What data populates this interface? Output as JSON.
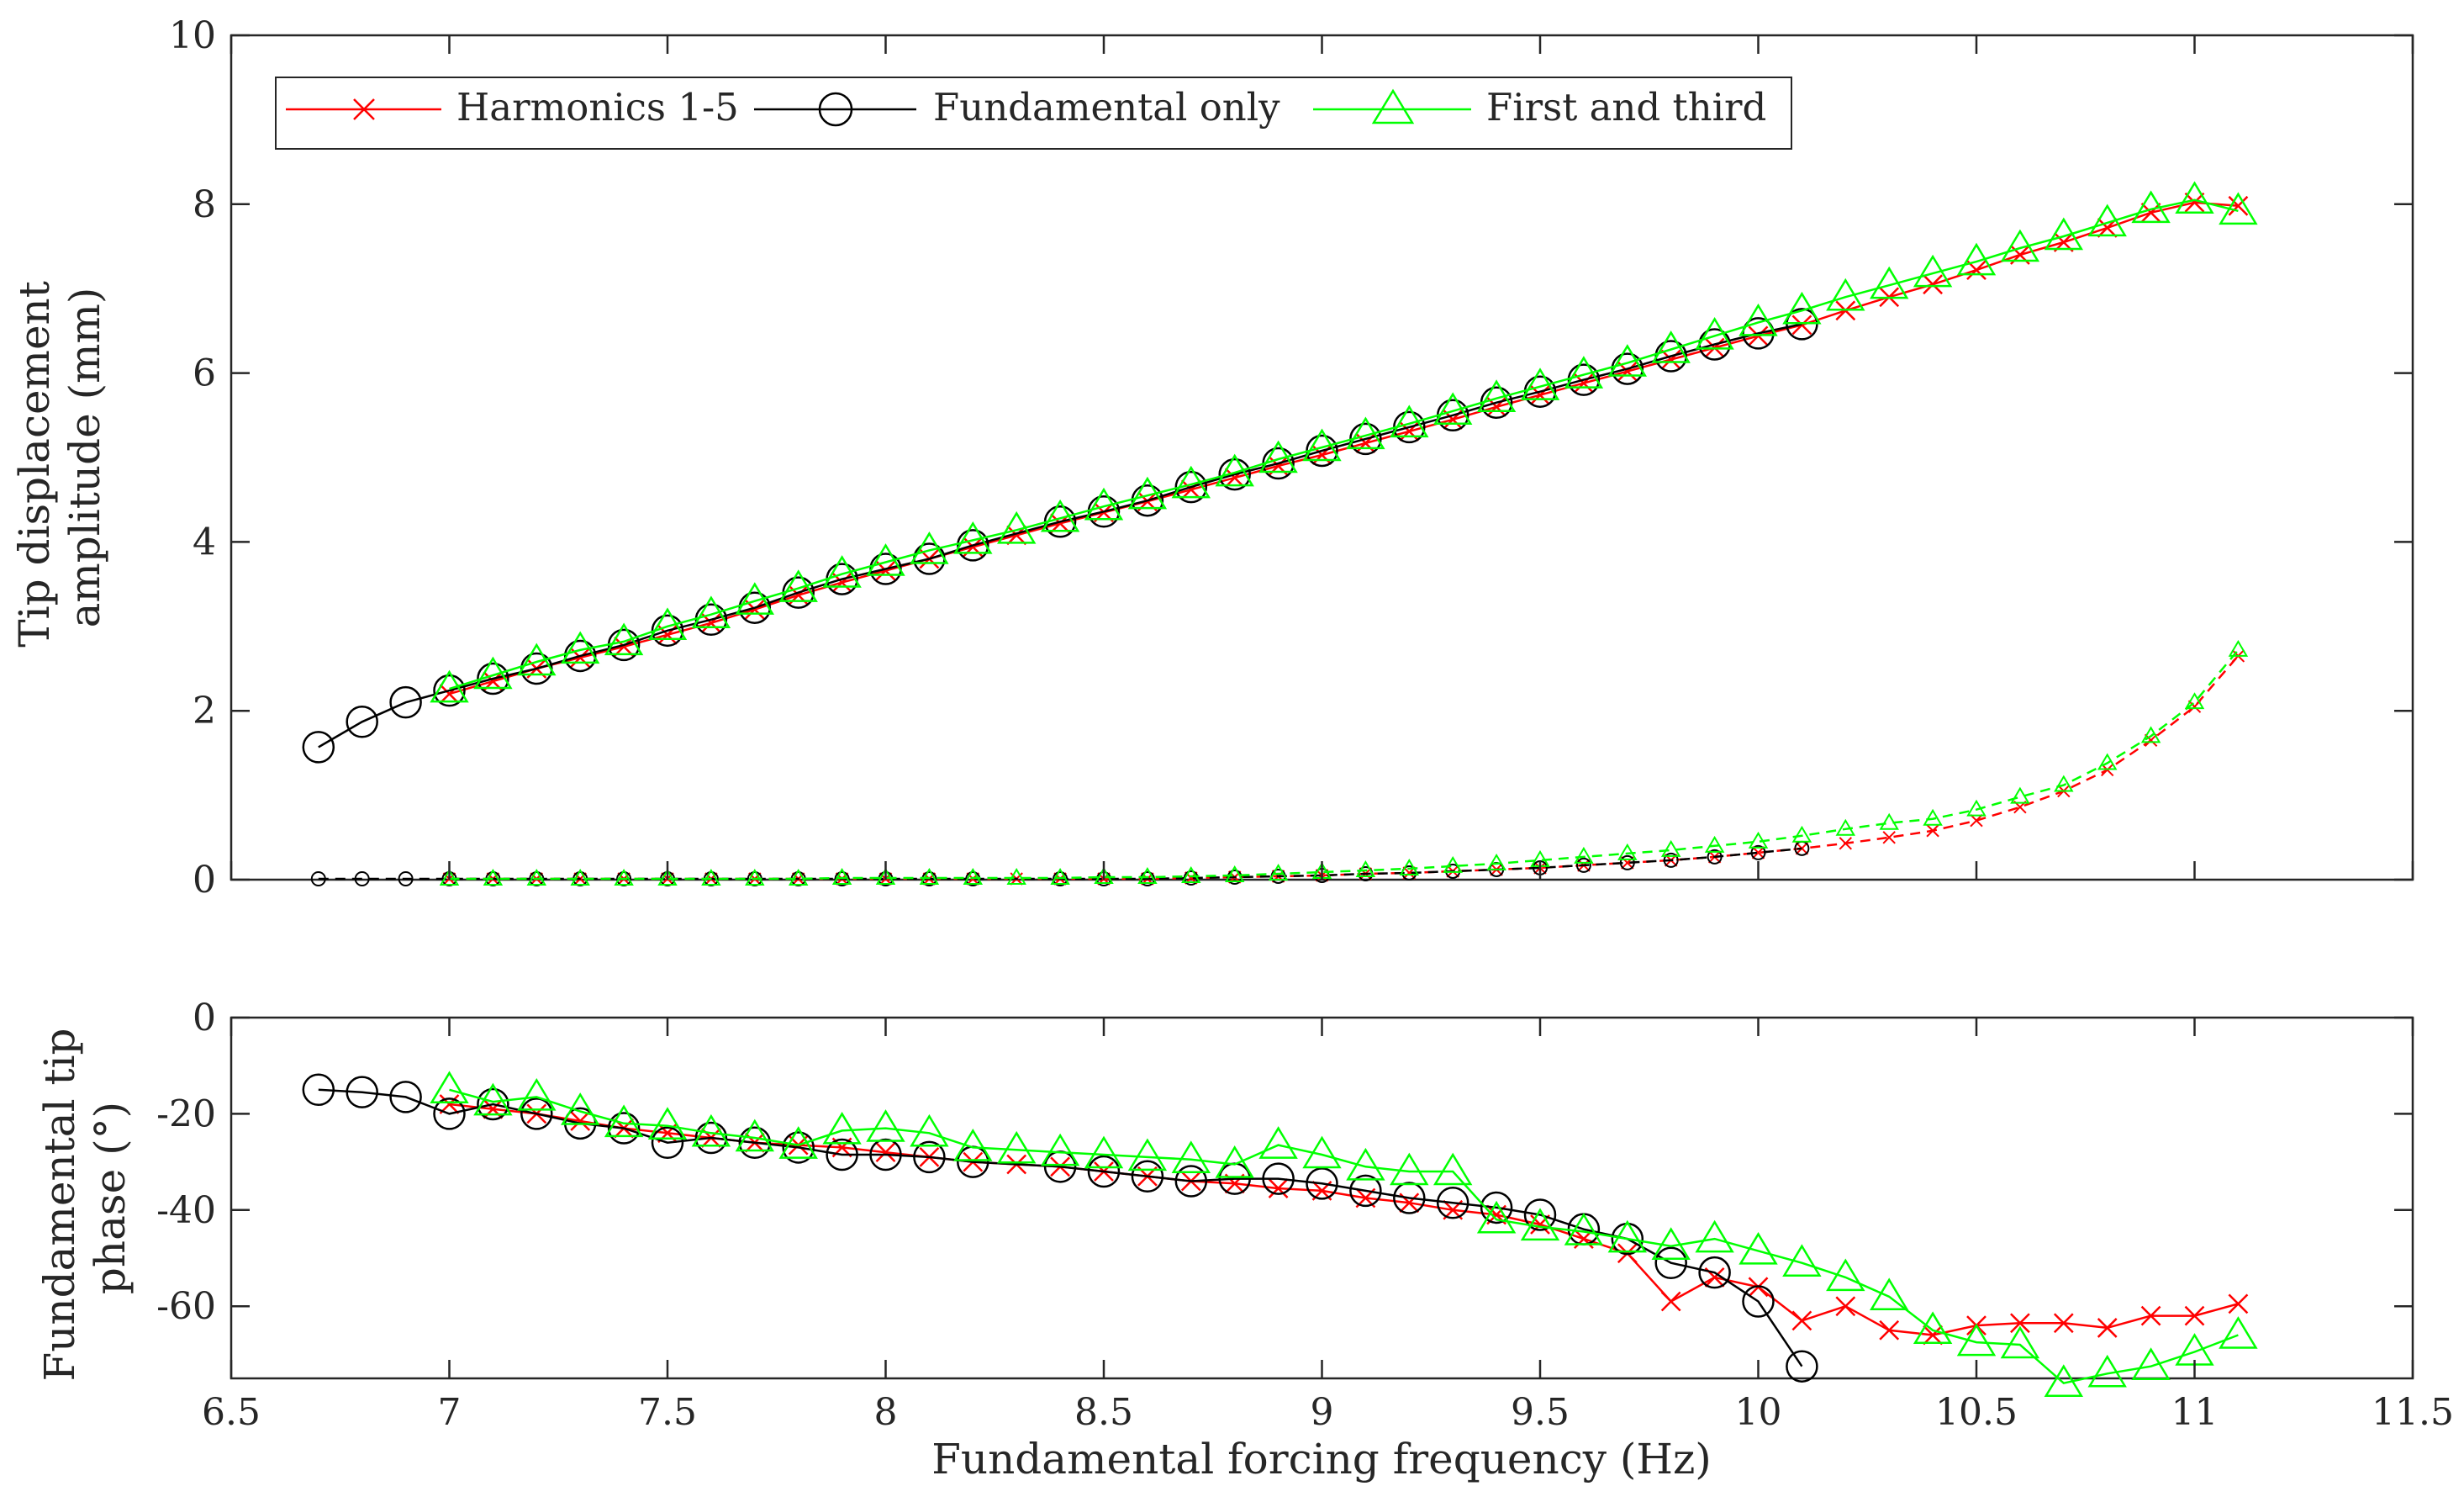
{
  "figure": {
    "xlabel": "Fundamental forcing frequency (Hz)"
  },
  "top": {
    "ylabel_lines": [
      "Tip displacement",
      "amplitude (mm)"
    ],
    "ylim": [
      0,
      10
    ],
    "yticks": [
      0,
      2,
      4,
      6,
      8,
      10
    ]
  },
  "bottom": {
    "ylabel_lines": [
      "Fundamental tip",
      "phase (°)"
    ],
    "ylim": [
      -75,
      0
    ],
    "yticks": [
      0,
      -20,
      -40,
      -60
    ]
  },
  "xaxis": {
    "xlim": [
      6.5,
      11.5
    ],
    "xticks": [
      6.5,
      7,
      7.5,
      8,
      8.5,
      9,
      9.5,
      10,
      10.5,
      11,
      11.5
    ]
  },
  "legend": {
    "items": [
      {
        "label": "Harmonics 1-5",
        "color": "#ff0000",
        "marker": "x"
      },
      {
        "label": "Fundamental only",
        "color": "#000000",
        "marker": "circle"
      },
      {
        "label": "First and third",
        "color": "#00ff00",
        "marker": "triangle"
      }
    ]
  },
  "chart_data": [
    {
      "type": "line",
      "panel": "top",
      "xlabel": "",
      "ylabel": "Tip displacement amplitude (mm)",
      "xlim": [
        6.5,
        11.5
      ],
      "ylim": [
        0,
        10
      ],
      "grid": false,
      "legend_position": "top-left",
      "series": [
        {
          "name": "Harmonics 1-5",
          "component": "fundamental",
          "style": "solid",
          "color": "#ff0000",
          "marker": "x",
          "x": [
            7,
            7.1,
            7.2,
            7.3,
            7.4,
            7.5,
            7.6,
            7.7,
            7.8,
            7.9,
            8,
            8.1,
            8.2,
            8.3,
            8.4,
            8.5,
            8.6,
            8.7,
            8.8,
            8.9,
            9,
            9.1,
            9.2,
            9.3,
            9.4,
            9.5,
            9.6,
            9.7,
            9.8,
            9.9,
            10,
            10.1,
            10.2,
            10.3,
            10.4,
            10.5,
            10.6,
            10.7,
            10.8,
            10.9,
            11,
            11.1
          ],
          "y": [
            2.2,
            2.35,
            2.5,
            2.63,
            2.76,
            2.9,
            3.04,
            3.2,
            3.37,
            3.52,
            3.66,
            3.8,
            3.94,
            4.08,
            4.22,
            4.35,
            4.48,
            4.62,
            4.76,
            4.9,
            5.03,
            5.17,
            5.31,
            5.45,
            5.6,
            5.74,
            5.88,
            6.02,
            6.16,
            6.3,
            6.44,
            6.57,
            6.74,
            6.9,
            7.05,
            7.22,
            7.4,
            7.55,
            7.72,
            7.9,
            8.02,
            7.98
          ]
        },
        {
          "name": "Fundamental only",
          "component": "fundamental",
          "style": "solid",
          "color": "#000000",
          "marker": "circle",
          "x": [
            6.7,
            6.8,
            6.9,
            7,
            7.1,
            7.2,
            7.3,
            7.4,
            7.5,
            7.6,
            7.7,
            7.8,
            7.9,
            8,
            8.1,
            8.2,
            8.4,
            8.5,
            8.6,
            8.7,
            8.8,
            8.9,
            9,
            9.1,
            9.2,
            9.3,
            9.4,
            9.5,
            9.6,
            9.7,
            9.8,
            9.9,
            10,
            10.1
          ],
          "y": [
            1.57,
            1.87,
            2.1,
            2.24,
            2.38,
            2.5,
            2.65,
            2.78,
            2.95,
            3.08,
            3.22,
            3.4,
            3.56,
            3.68,
            3.8,
            3.96,
            4.24,
            4.36,
            4.49,
            4.65,
            4.8,
            4.93,
            5.08,
            5.22,
            5.36,
            5.5,
            5.65,
            5.78,
            5.92,
            6.05,
            6.2,
            6.34,
            6.47,
            6.58
          ]
        },
        {
          "name": "First and third",
          "component": "fundamental",
          "style": "solid",
          "color": "#00ff00",
          "marker": "triangle",
          "x": [
            7,
            7.1,
            7.2,
            7.3,
            7.4,
            7.5,
            7.6,
            7.7,
            7.8,
            7.9,
            8,
            8.1,
            8.2,
            8.3,
            8.4,
            8.5,
            8.6,
            8.7,
            8.8,
            8.9,
            9,
            9.1,
            9.2,
            9.3,
            9.4,
            9.5,
            9.6,
            9.7,
            9.8,
            9.9,
            10,
            10.1,
            10.2,
            10.3,
            10.4,
            10.5,
            10.6,
            10.7,
            10.8,
            10.9,
            11,
            11.1
          ],
          "y": [
            2.26,
            2.42,
            2.58,
            2.72,
            2.82,
            3.0,
            3.14,
            3.3,
            3.45,
            3.62,
            3.76,
            3.9,
            4.02,
            4.14,
            4.28,
            4.42,
            4.55,
            4.68,
            4.82,
            4.98,
            5.12,
            5.26,
            5.4,
            5.55,
            5.7,
            5.84,
            5.98,
            6.12,
            6.28,
            6.44,
            6.6,
            6.74,
            6.9,
            7.04,
            7.18,
            7.32,
            7.48,
            7.62,
            7.78,
            7.94,
            8.05,
            7.92
          ]
        },
        {
          "name": "Harmonics 1-5 (3rd harmonic)",
          "component": "third",
          "style": "dashed",
          "color": "#ff0000",
          "marker": "x-small",
          "x": [
            7,
            7.1,
            7.2,
            7.3,
            7.4,
            7.5,
            7.6,
            7.7,
            7.8,
            7.9,
            8,
            8.1,
            8.2,
            8.3,
            8.4,
            8.5,
            8.6,
            8.7,
            8.8,
            8.9,
            9,
            9.1,
            9.2,
            9.3,
            9.4,
            9.5,
            9.6,
            9.7,
            9.8,
            9.9,
            10,
            10.1,
            10.2,
            10.3,
            10.4,
            10.5,
            10.6,
            10.7,
            10.8,
            10.9,
            11,
            11.1
          ],
          "y": [
            0.01,
            0.01,
            0.01,
            0.01,
            0.01,
            0.01,
            0.01,
            0.01,
            0.01,
            0.01,
            0.01,
            0.01,
            0.01,
            0.01,
            0.01,
            0.01,
            0.01,
            0.02,
            0.03,
            0.04,
            0.05,
            0.07,
            0.08,
            0.1,
            0.12,
            0.14,
            0.17,
            0.2,
            0.23,
            0.27,
            0.32,
            0.37,
            0.43,
            0.5,
            0.58,
            0.7,
            0.86,
            1.05,
            1.3,
            1.65,
            2.05,
            2.65
          ]
        },
        {
          "name": "Fundamental only (3rd harmonic)",
          "component": "third",
          "style": "dashed",
          "color": "#000000",
          "marker": "circle-small",
          "x": [
            6.7,
            6.8,
            6.9,
            7,
            7.1,
            7.2,
            7.3,
            7.4,
            7.5,
            7.6,
            7.7,
            7.8,
            7.9,
            8,
            8.1,
            8.2,
            8.4,
            8.5,
            8.6,
            8.7,
            8.8,
            8.9,
            9,
            9.1,
            9.2,
            9.3,
            9.4,
            9.5,
            9.6,
            9.7,
            9.8,
            9.9,
            10,
            10.1
          ],
          "y": [
            0.01,
            0.01,
            0.01,
            0.01,
            0.01,
            0.01,
            0.01,
            0.01,
            0.01,
            0.01,
            0.01,
            0.01,
            0.01,
            0.01,
            0.01,
            0.01,
            0.01,
            0.01,
            0.01,
            0.02,
            0.03,
            0.04,
            0.05,
            0.07,
            0.08,
            0.1,
            0.12,
            0.14,
            0.17,
            0.2,
            0.23,
            0.27,
            0.32,
            0.37
          ]
        },
        {
          "name": "First and third (3rd harmonic)",
          "component": "third",
          "style": "dashed",
          "color": "#00ff00",
          "marker": "triangle-small",
          "x": [
            7,
            7.1,
            7.2,
            7.3,
            7.4,
            7.5,
            7.6,
            7.7,
            7.8,
            7.9,
            8,
            8.1,
            8.2,
            8.3,
            8.4,
            8.5,
            8.6,
            8.7,
            8.8,
            8.9,
            9,
            9.1,
            9.2,
            9.3,
            9.4,
            9.5,
            9.6,
            9.7,
            9.8,
            9.9,
            10,
            10.1,
            10.2,
            10.3,
            10.4,
            10.5,
            10.6,
            10.7,
            10.8,
            10.9,
            11,
            11.1
          ],
          "y": [
            0.01,
            0.01,
            0.01,
            0.01,
            0.01,
            0.01,
            0.01,
            0.01,
            0.01,
            0.02,
            0.02,
            0.02,
            0.02,
            0.02,
            0.02,
            0.03,
            0.03,
            0.04,
            0.05,
            0.07,
            0.09,
            0.11,
            0.13,
            0.16,
            0.19,
            0.23,
            0.27,
            0.31,
            0.35,
            0.4,
            0.45,
            0.52,
            0.6,
            0.67,
            0.72,
            0.83,
            0.98,
            1.12,
            1.38,
            1.7,
            2.1,
            2.72
          ]
        }
      ]
    },
    {
      "type": "line",
      "panel": "bottom",
      "xlabel": "Fundamental forcing frequency (Hz)",
      "ylabel": "Fundamental tip phase (°)",
      "xlim": [
        6.5,
        11.5
      ],
      "ylim": [
        -75,
        0
      ],
      "grid": false,
      "series": [
        {
          "name": "Harmonics 1-5",
          "style": "solid",
          "color": "#ff0000",
          "marker": "x",
          "x": [
            7,
            7.1,
            7.2,
            7.3,
            7.4,
            7.5,
            7.6,
            7.7,
            7.8,
            7.9,
            8,
            8.1,
            8.2,
            8.3,
            8.4,
            8.5,
            8.6,
            8.7,
            8.8,
            8.9,
            9,
            9.1,
            9.2,
            9.3,
            9.4,
            9.5,
            9.6,
            9.7,
            9.8,
            9.9,
            10,
            10.1,
            10.2,
            10.3,
            10.4,
            10.5,
            10.6,
            10.7,
            10.8,
            10.9,
            11,
            11.1
          ],
          "y": [
            -18,
            -19,
            -20,
            -21.5,
            -23,
            -24,
            -25,
            -26,
            -26.5,
            -27,
            -28,
            -29,
            -30,
            -30.5,
            -31,
            -32,
            -33,
            -34,
            -34.5,
            -35.5,
            -36,
            -37.5,
            -38.5,
            -40,
            -41,
            -43,
            -46,
            -49,
            -59,
            -54,
            -56,
            -63,
            -60,
            -65,
            -66,
            -64,
            -63.5,
            -63.5,
            -64.5,
            -62,
            -62,
            -59.5
          ]
        },
        {
          "name": "Fundamental only",
          "style": "solid",
          "color": "#000000",
          "marker": "circle",
          "x": [
            6.7,
            6.8,
            6.9,
            7,
            7.1,
            7.2,
            7.3,
            7.4,
            7.5,
            7.6,
            7.7,
            7.8,
            7.9,
            8,
            8.1,
            8.2,
            8.4,
            8.5,
            8.6,
            8.7,
            8.8,
            8.9,
            9,
            9.1,
            9.2,
            9.3,
            9.4,
            9.5,
            9.6,
            9.7,
            9.8,
            9.9,
            10,
            10.1
          ],
          "y": [
            -15,
            -15.5,
            -16.5,
            -20,
            -18,
            -20,
            -22,
            -23,
            -26,
            -25,
            -26,
            -27,
            -28.5,
            -28.5,
            -29,
            -30,
            -31,
            -32,
            -33,
            -34,
            -33.5,
            -33.5,
            -34.5,
            -36,
            -37.5,
            -38.5,
            -39.5,
            -41,
            -44,
            -46,
            -51,
            -53,
            -59,
            -72.5
          ]
        },
        {
          "name": "First and third",
          "style": "solid",
          "color": "#00ff00",
          "marker": "triangle",
          "x": [
            7,
            7.1,
            7.2,
            7.3,
            7.4,
            7.5,
            7.6,
            7.7,
            7.8,
            7.9,
            8,
            8.1,
            8.2,
            8.3,
            8.4,
            8.5,
            8.6,
            8.7,
            8.8,
            8.9,
            9,
            9.1,
            9.2,
            9.3,
            9.4,
            9.5,
            9.6,
            9.7,
            9.8,
            9.9,
            10,
            10.1,
            10.2,
            10.3,
            10.4,
            10.5,
            10.6,
            10.7,
            10.8,
            10.9,
            11,
            11.1
          ],
          "y": [
            -15,
            -17.5,
            -16.5,
            -19.5,
            -22,
            -22.5,
            -24,
            -25,
            -26.5,
            -23.5,
            -23,
            -24,
            -27,
            -27.5,
            -28,
            -28.5,
            -29,
            -29.5,
            -30.5,
            -26.5,
            -28.5,
            -31,
            -32,
            -32,
            -42,
            -43.5,
            -44.5,
            -46,
            -47.5,
            -46,
            -48.5,
            -51,
            -54,
            -58,
            -65,
            -67.5,
            -68,
            -76,
            -74,
            -72.5,
            -69.5,
            -66
          ]
        }
      ]
    }
  ]
}
